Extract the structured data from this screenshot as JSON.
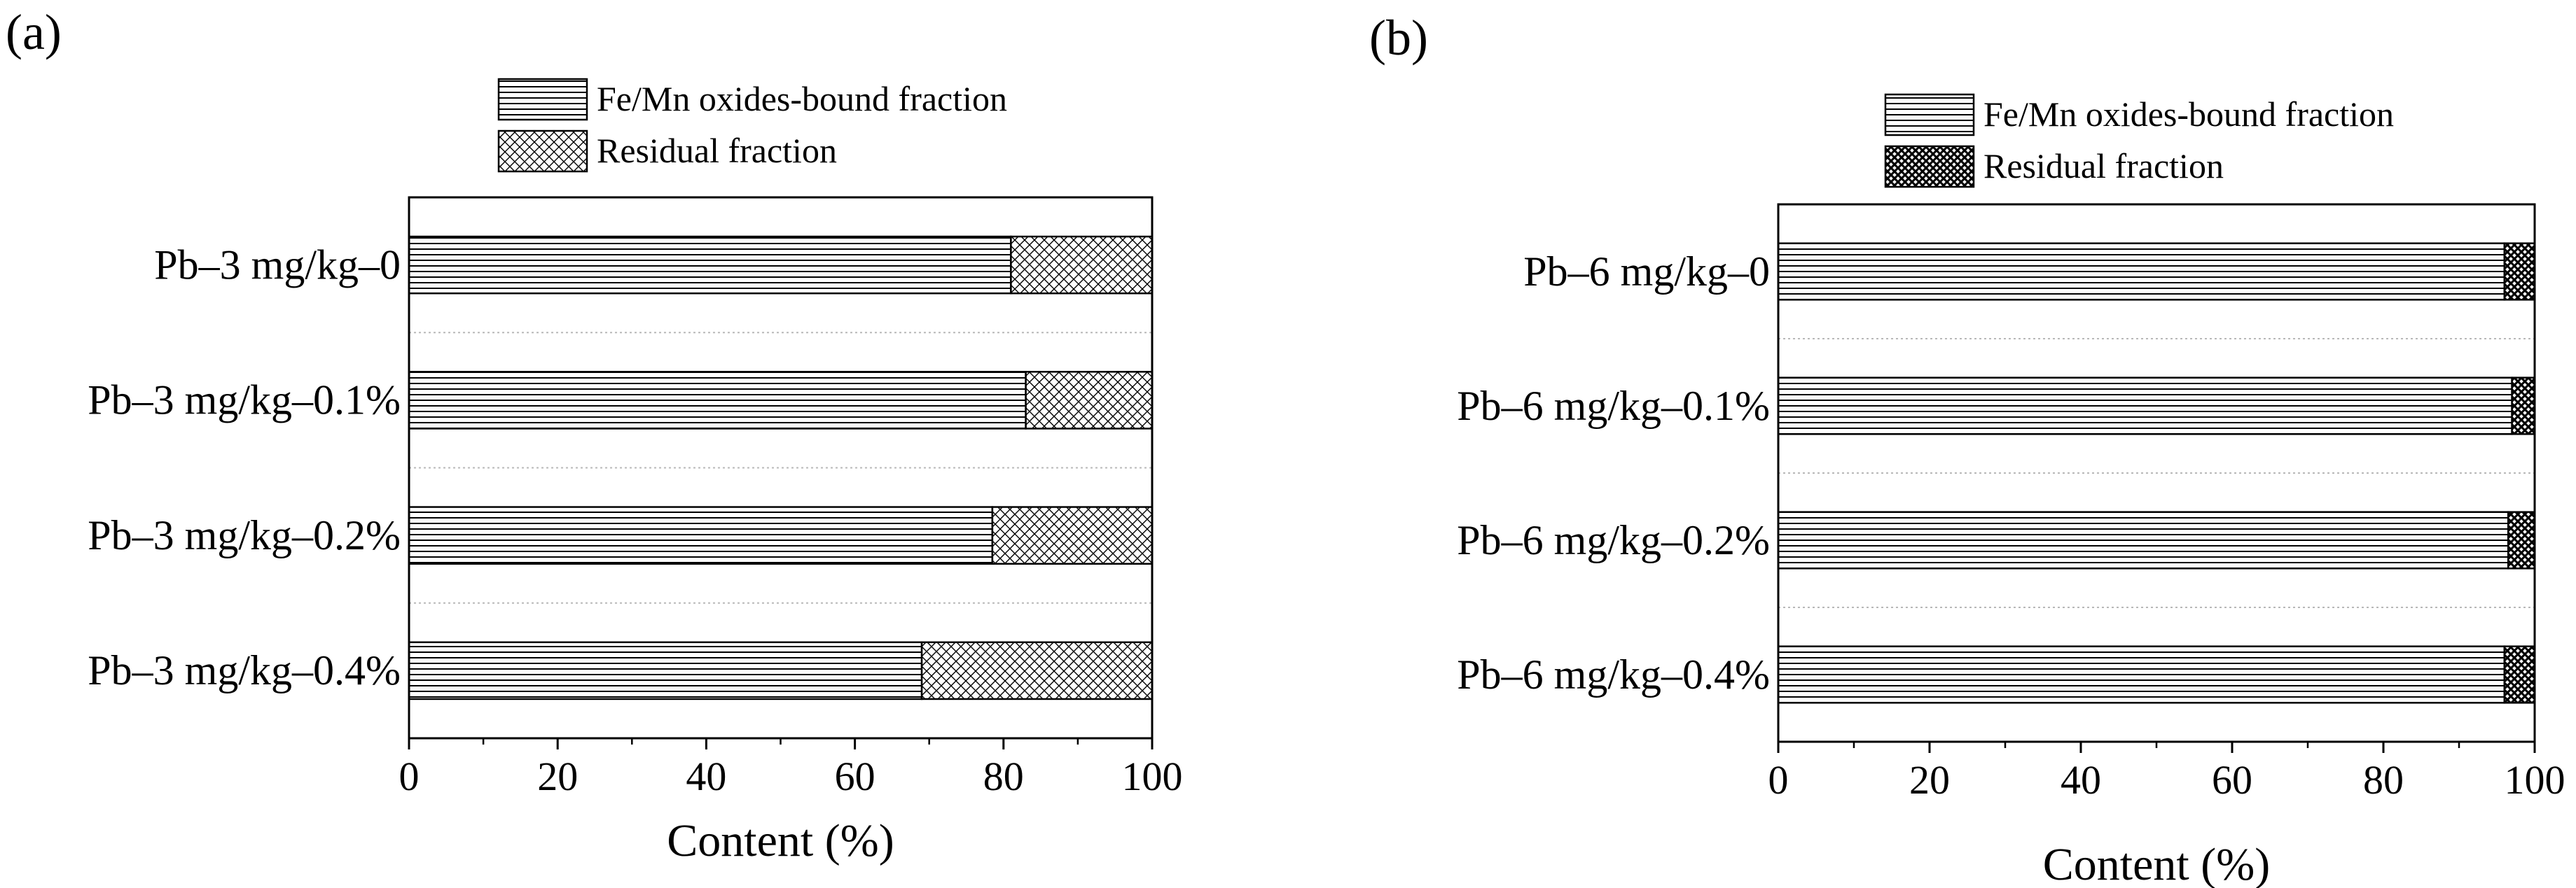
{
  "chart_data": [
    {
      "panel_label": "(a)",
      "type": "bar",
      "orientation": "horizontal",
      "stacked": true,
      "categories": [
        "Pb–3 mg/kg–0",
        "Pb–3 mg/kg–0.1%",
        "Pb–3 mg/kg–0.2%",
        "Pb–3 mg/kg–0.4%"
      ],
      "series": [
        {
          "name": "Fe/Mn oxides-bound fraction",
          "pattern": "horizontal-lines",
          "values": [
            81,
            83,
            78.5,
            69
          ]
        },
        {
          "name": "Residual fraction",
          "pattern": "crosshatch",
          "values": [
            19,
            17,
            21.5,
            31
          ]
        }
      ],
      "xlabel": "Content (%)",
      "xlim": [
        0,
        100
      ],
      "xticks": [
        0,
        20,
        40,
        60,
        80,
        100
      ],
      "legend_position": "top"
    },
    {
      "panel_label": "(b)",
      "type": "bar",
      "orientation": "horizontal",
      "stacked": true,
      "categories": [
        "Pb–6 mg/kg–0",
        "Pb–6 mg/kg–0.1%",
        "Pb–6 mg/kg–0.2%",
        "Pb–6 mg/kg–0.4%"
      ],
      "series": [
        {
          "name": "Fe/Mn oxides-bound fraction",
          "pattern": "horizontal-lines",
          "values": [
            96,
            97,
            96.5,
            96
          ]
        },
        {
          "name": "Residual fraction",
          "pattern": "dense-crosshatch",
          "values": [
            4,
            3,
            3.5,
            4
          ]
        }
      ],
      "xlabel": "Content (%)",
      "xlim": [
        0,
        100
      ],
      "xticks": [
        0,
        20,
        40,
        60,
        80,
        100
      ],
      "legend_position": "top"
    }
  ]
}
